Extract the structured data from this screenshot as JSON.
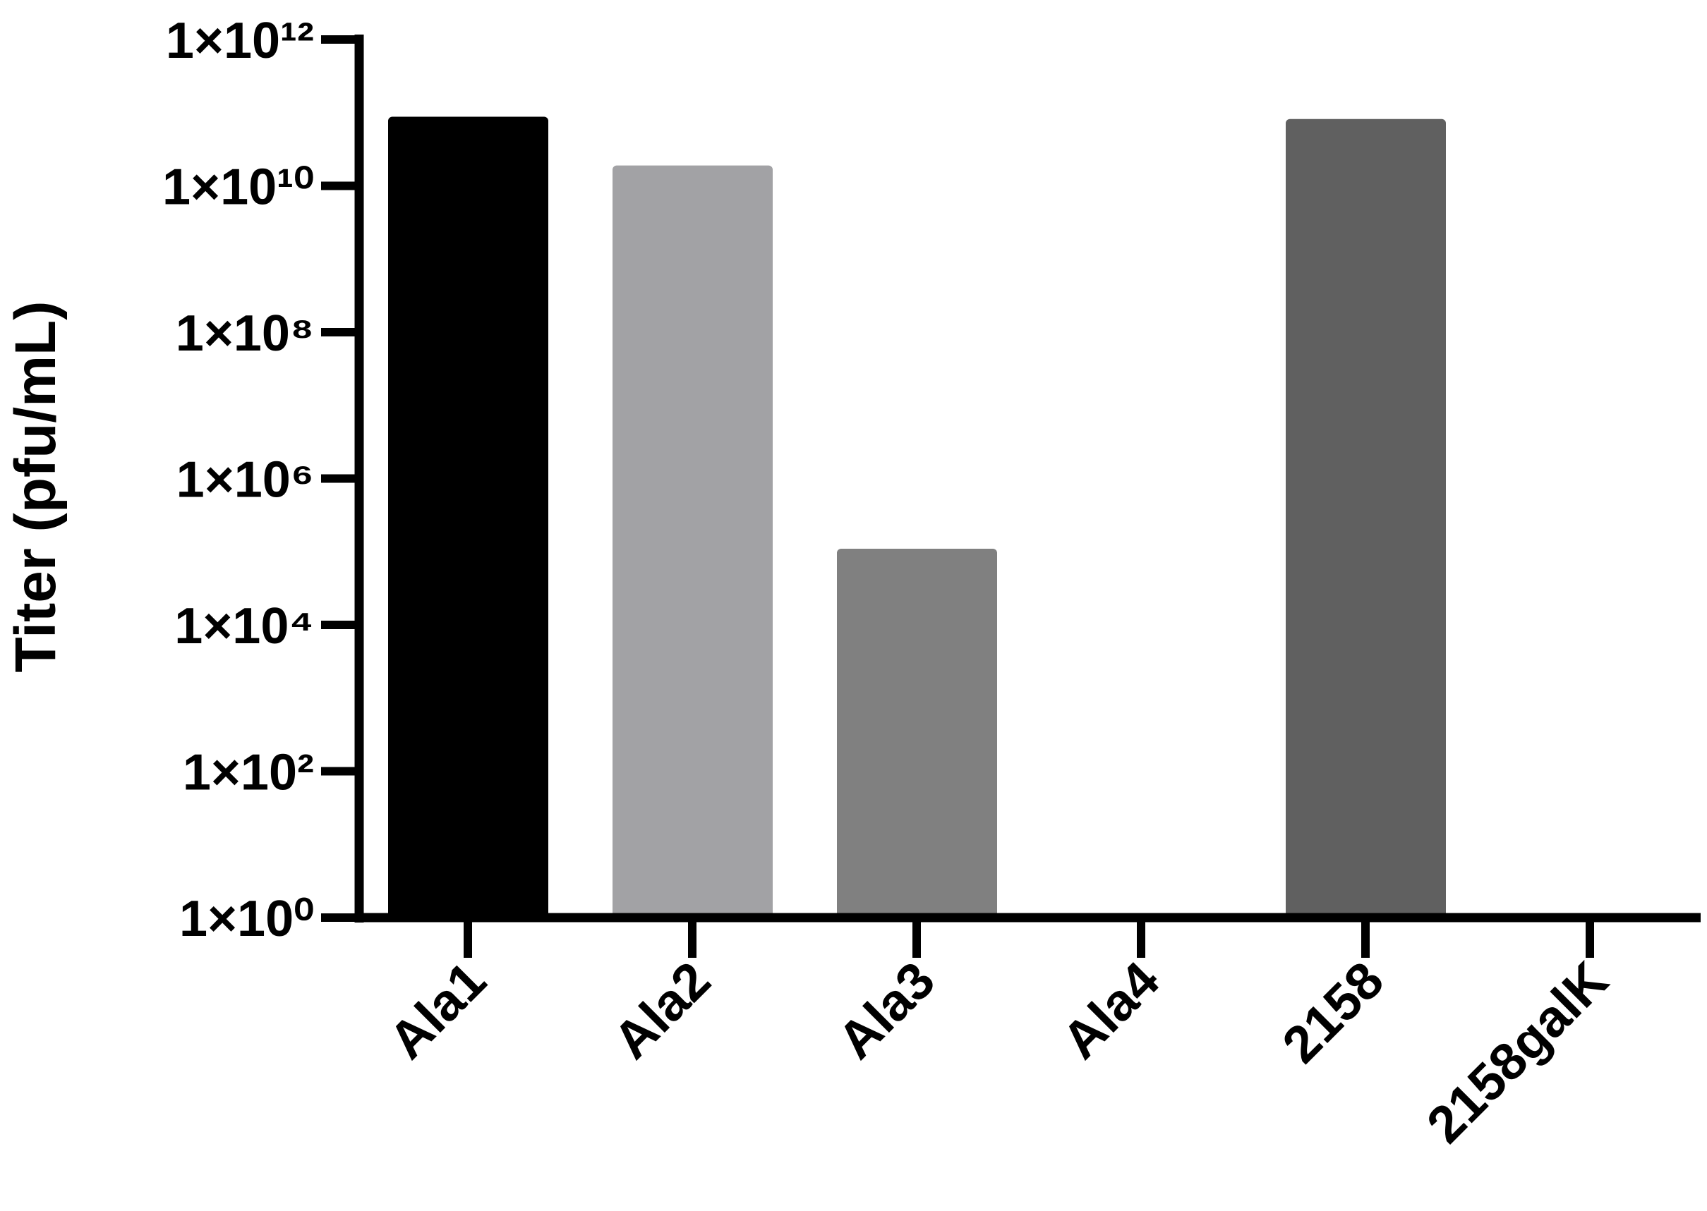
{
  "chart_data": {
    "type": "bar",
    "y_label": "Titer (pfu/mL)",
    "categories": [
      "Ala1",
      "Ala2",
      "Ala3",
      "Ala4",
      "2158",
      "2158galK"
    ],
    "values": [
      88000000000,
      19000000000,
      110000,
      null,
      82000000000,
      null
    ],
    "colors": [
      "#000000",
      "#a2a2a5",
      "#808080",
      "#808080",
      "#606060",
      "#606060"
    ],
    "log_scale": true,
    "ylim": [
      1,
      1000000000000
    ],
    "yticks": [
      {
        "value": 1,
        "label": "1×10⁰"
      },
      {
        "value": 100,
        "label": "1×10²"
      },
      {
        "value": 10000,
        "label": "1×10⁴"
      },
      {
        "value": 1000000,
        "label": "1×10⁶"
      },
      {
        "value": 100000000,
        "label": "1×10⁸"
      },
      {
        "value": 10000000000,
        "label": "1×10¹⁰"
      },
      {
        "value": 1000000000000,
        "label": "1×10¹²"
      }
    ]
  }
}
